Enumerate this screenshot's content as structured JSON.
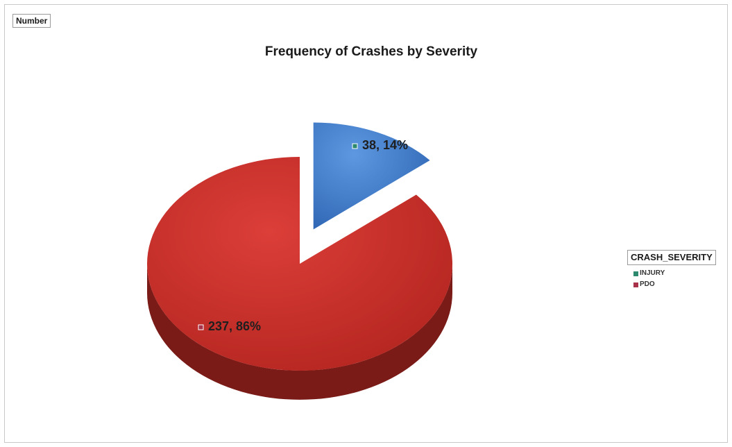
{
  "field_button": "Number",
  "chart_data": {
    "type": "pie",
    "title": "Frequency of Crashes by Severity",
    "legend_title": "CRASH_SEVERITY",
    "legend_position": "right",
    "categories": [
      "INJURY",
      "PDO"
    ],
    "values": [
      38,
      237
    ],
    "percent_labels": [
      "14%",
      "86%"
    ],
    "data_labels": [
      "38, 14%",
      "237, 86%"
    ],
    "legend_swatch_colors": [
      "#2e8a6e",
      "#a8324a"
    ],
    "slice_colors": [
      "#3a78c8",
      "#c8322d"
    ],
    "slice_side_colors": [
      "#24538f",
      "#7a1b17"
    ],
    "exploded": [
      "INJURY"
    ],
    "three_d": true
  }
}
